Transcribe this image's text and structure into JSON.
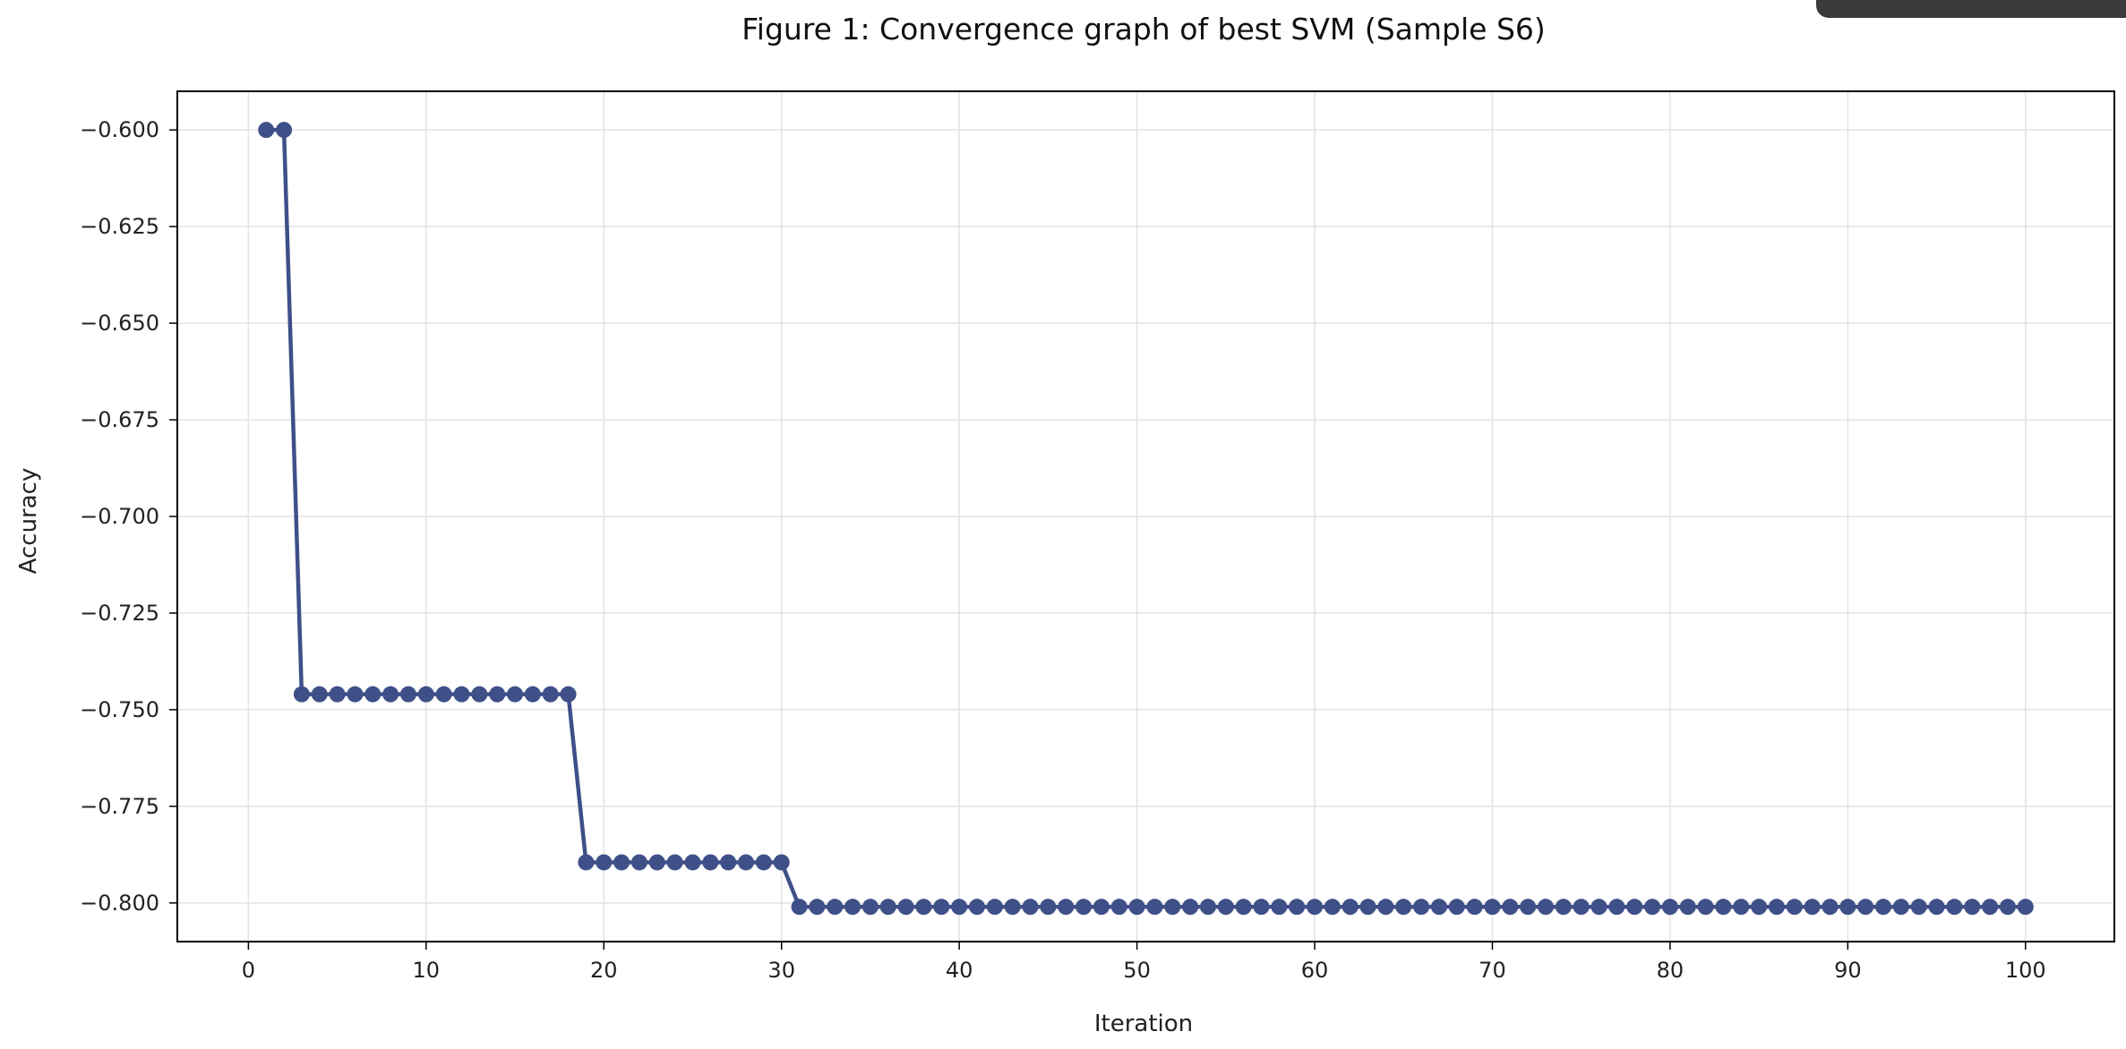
{
  "chart_data": {
    "type": "line",
    "title": "Figure 1: Convergence graph of best SVM (Sample S6)",
    "xlabel": "Iteration",
    "ylabel": "Accuracy",
    "xlim": [
      -4,
      105
    ],
    "ylim": [
      -0.81,
      -0.59
    ],
    "xticks": [
      0,
      10,
      20,
      30,
      40,
      50,
      60,
      70,
      80,
      90,
      100
    ],
    "xtick_labels": [
      "0",
      "10",
      "20",
      "30",
      "40",
      "50",
      "60",
      "70",
      "80",
      "90",
      "100"
    ],
    "yticks": [
      -0.6,
      -0.625,
      -0.65,
      -0.675,
      -0.7,
      -0.725,
      -0.75,
      -0.775,
      -0.8
    ],
    "ytick_labels": [
      "−0.600",
      "−0.625",
      "−0.650",
      "−0.675",
      "−0.700",
      "−0.725",
      "−0.750",
      "−0.775",
      "−0.800"
    ],
    "grid": true,
    "marker": "circle",
    "line_color": "#3f5088",
    "series": [
      {
        "segments": [
          {
            "x_start": 1,
            "x_end": 2,
            "y": -0.6
          },
          {
            "x_start": 3,
            "x_end": 18,
            "y": -0.746
          },
          {
            "x_start": 19,
            "x_end": 30,
            "y": -0.7895
          },
          {
            "x_start": 31,
            "x_end": 100,
            "y": -0.801
          }
        ]
      }
    ]
  }
}
